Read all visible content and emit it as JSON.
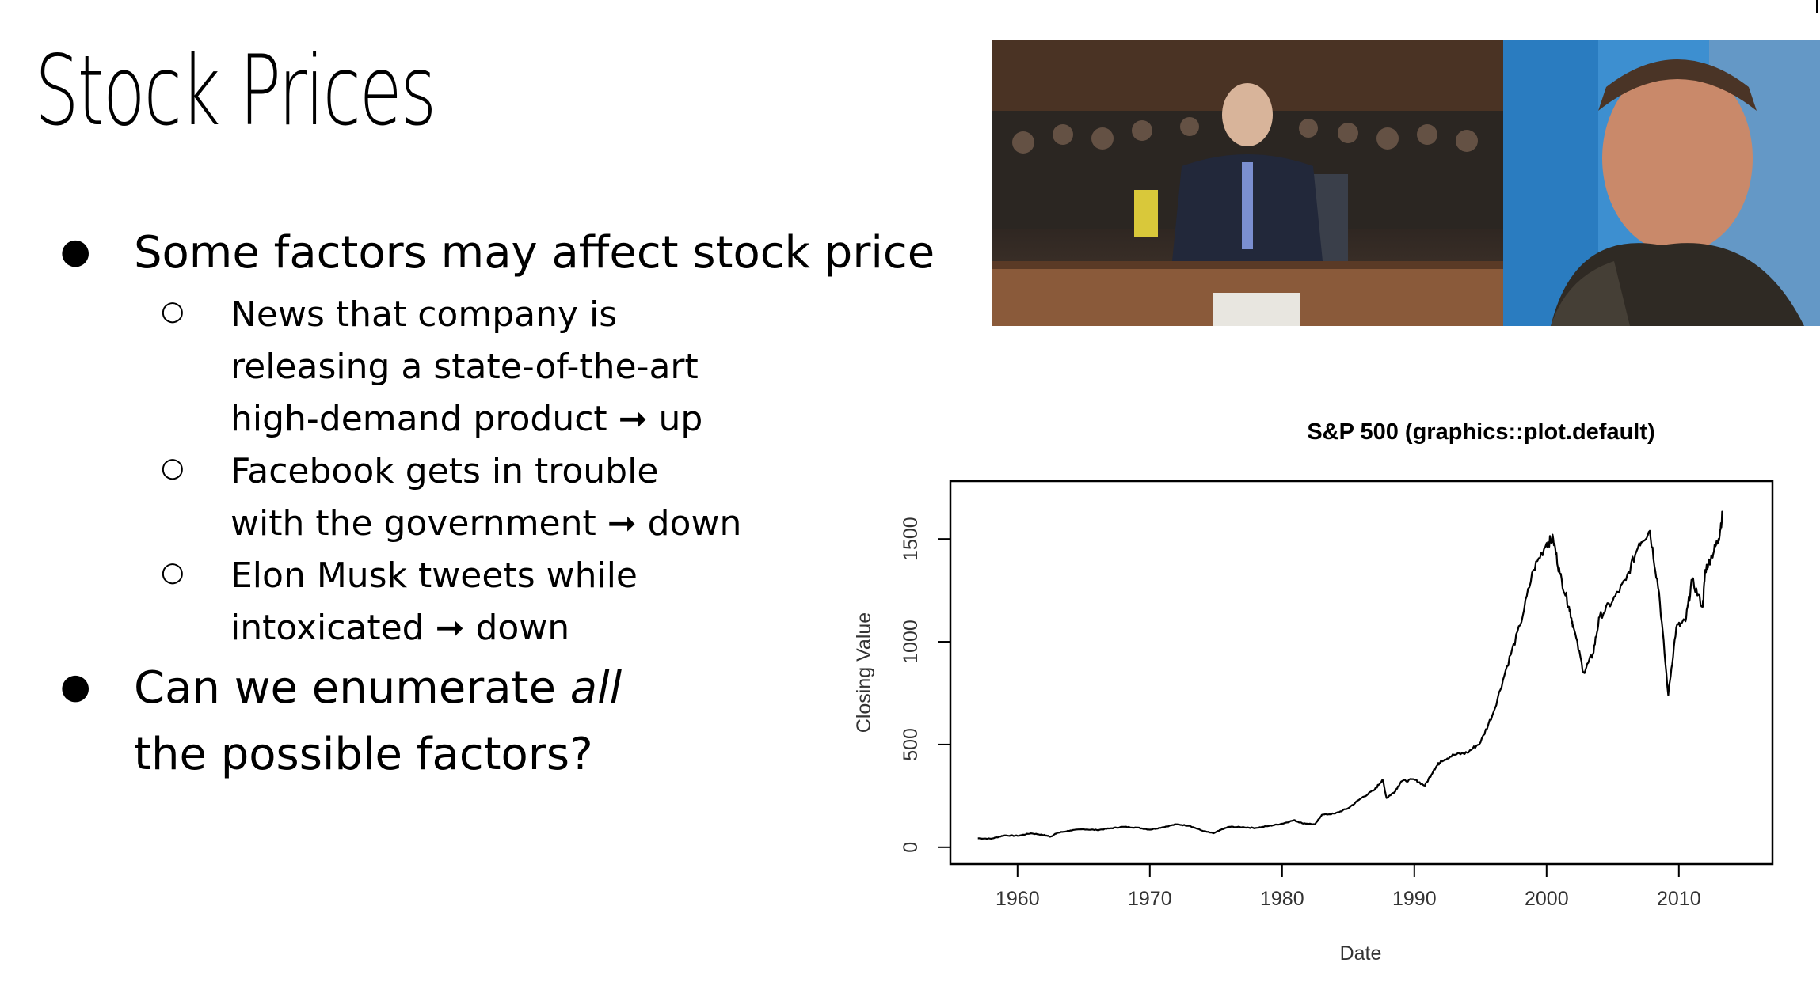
{
  "slide": {
    "title": "Stock Prices",
    "bullets": [
      {
        "text": "Some factors may affect stock price"
      },
      {
        "lines": [
          "News that company is",
          "releasing a state-of-the-art",
          "high-demand product ➞ up"
        ]
      },
      {
        "lines": [
          "Facebook gets in trouble",
          "with the government ➞ down"
        ]
      },
      {
        "lines": [
          "Elon Musk tweets while",
          "intoxicated ➞ down"
        ]
      },
      {
        "prefix": "Can we enumerate ",
        "emphasis": "all",
        "line2": "the possible factors?"
      }
    ]
  },
  "chart_data": {
    "type": "line",
    "title": "S&P 500 (graphics::plot.default)",
    "xlabel": "Date",
    "ylabel": "Closing Value",
    "xlim": [
      1956,
      2016
    ],
    "ylim": [
      -20,
      1720
    ],
    "x_ticks": [
      1960,
      1970,
      1980,
      1990,
      2000,
      2010
    ],
    "y_ticks": [
      0,
      500,
      1000,
      1500
    ],
    "series": [
      {
        "x": [
          1957,
          1958,
          1959,
          1960,
          1961,
          1962,
          1962.5,
          1963,
          1964,
          1965,
          1966,
          1967,
          1968,
          1969,
          1970,
          1971,
          1972,
          1973,
          1974,
          1974.8,
          1975.5,
          1976,
          1977,
          1978,
          1979,
          1980,
          1980.9,
          1981.5,
          1982.5,
          1983,
          1984,
          1985,
          1986,
          1987,
          1987.6,
          1987.9,
          1988.5,
          1989,
          1990,
          1990.8,
          1991.5,
          1992,
          1993,
          1994,
          1995,
          1996,
          1997,
          1998,
          1999,
          2000,
          2000.5,
          2001,
          2001.7,
          2002,
          2002.8,
          2003.5,
          2004,
          2005,
          2006,
          2007,
          2007.8,
          2008.5,
          2009.2,
          2009.8,
          2010.5,
          2011,
          2011.8,
          2012,
          2012.5,
          2013,
          2013.3
        ],
        "y": [
          44,
          42,
          58,
          56,
          68,
          60,
          52,
          70,
          82,
          88,
          84,
          92,
          100,
          96,
          86,
          98,
          112,
          105,
          80,
          68,
          88,
          100,
          98,
          94,
          104,
          115,
          132,
          118,
          112,
          158,
          164,
          190,
          240,
          280,
          330,
          240,
          270,
          320,
          330,
          300,
          380,
          420,
          450,
          460,
          510,
          660,
          880,
          1080,
          1350,
          1480,
          1500,
          1330,
          1170,
          1080,
          850,
          940,
          1120,
          1200,
          1300,
          1480,
          1540,
          1240,
          740,
          1070,
          1100,
          1300,
          1170,
          1350,
          1420,
          1500,
          1620
        ]
      }
    ]
  }
}
